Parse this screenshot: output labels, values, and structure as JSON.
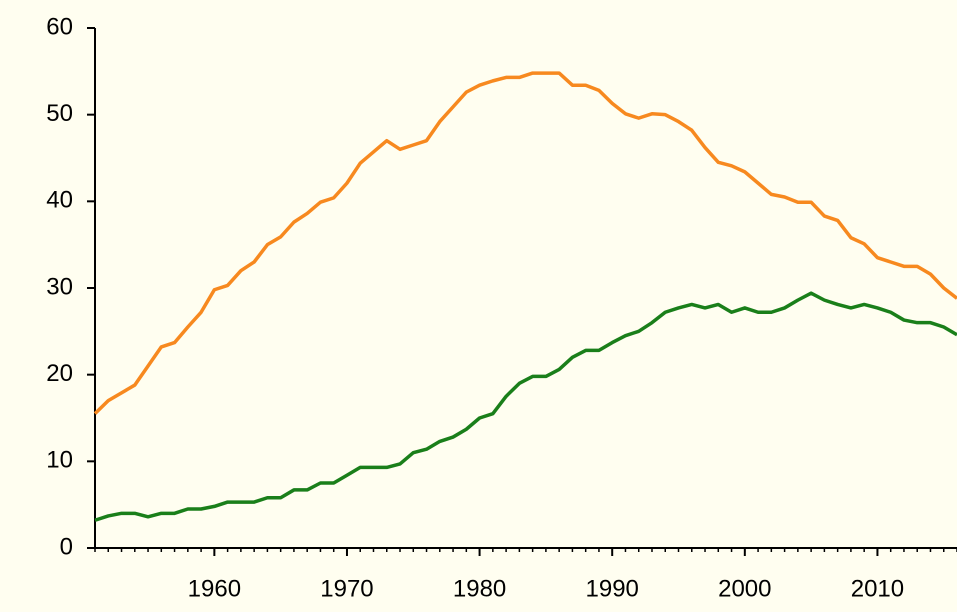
{
  "chart_data": {
    "type": "line",
    "x": [
      1951,
      1952,
      1953,
      1954,
      1955,
      1956,
      1957,
      1958,
      1959,
      1960,
      1961,
      1962,
      1963,
      1964,
      1965,
      1966,
      1967,
      1968,
      1969,
      1970,
      1971,
      1972,
      1973,
      1974,
      1975,
      1976,
      1977,
      1978,
      1979,
      1980,
      1981,
      1982,
      1983,
      1984,
      1985,
      1986,
      1987,
      1988,
      1989,
      1990,
      1991,
      1992,
      1993,
      1994,
      1995,
      1996,
      1997,
      1998,
      1999,
      2000,
      2001,
      2002,
      2003,
      2004,
      2005,
      2006,
      2007,
      2008,
      2009,
      2010,
      2011,
      2012,
      2013,
      2014,
      2015,
      2016
    ],
    "series": [
      {
        "color": "#f7891f",
        "values": [
          15.5,
          17,
          17.9,
          18.8,
          21,
          23.2,
          23.7,
          25.5,
          27.2,
          29.8,
          30.3,
          32,
          33,
          35,
          35.9,
          37.6,
          38.6,
          39.9,
          40.4,
          42.1,
          44.4,
          45.7,
          47,
          46,
          46.5,
          47,
          49.2,
          50.9,
          52.6,
          53.4,
          53.9,
          54.3,
          54.3,
          54.8,
          54.8,
          54.8,
          53.4,
          53.4,
          52.8,
          51.3,
          50.1,
          49.6,
          50.1,
          50,
          49.2,
          48.2,
          46.2,
          44.5,
          44.1,
          43.4,
          42.1,
          40.8,
          40.5,
          39.9,
          39.9,
          38.3,
          37.8,
          35.8,
          35.1,
          33.5,
          33,
          32.5,
          32.5,
          31.6,
          30,
          28.8
        ]
      },
      {
        "color": "#1a7f1a",
        "values": [
          3.2,
          3.7,
          4,
          4,
          3.6,
          4,
          4,
          4.5,
          4.5,
          4.8,
          5.3,
          5.3,
          5.3,
          5.8,
          5.8,
          6.7,
          6.7,
          7.5,
          7.5,
          8.4,
          9.3,
          9.3,
          9.3,
          9.7,
          11,
          11.4,
          12.3,
          12.8,
          13.7,
          15,
          15.5,
          17.5,
          19,
          19.8,
          19.8,
          20.6,
          22,
          22.8,
          22.8,
          23.7,
          24.5,
          25,
          26,
          27.2,
          27.7,
          28.1,
          27.7,
          28.1,
          27.2,
          27.7,
          27.2,
          27.2,
          27.7,
          28.6,
          29.4,
          28.6,
          28.1,
          27.7,
          28.1,
          27.7,
          27.2,
          26.3,
          26,
          26,
          25.5,
          24.6
        ]
      }
    ],
    "xlim": [
      1951,
      2016
    ],
    "xticks": [
      1960,
      1970,
      1980,
      1990,
      2000,
      2010
    ],
    "ylim": [
      0,
      60
    ],
    "yticks": [
      0,
      10,
      20,
      30,
      40,
      50,
      60
    ]
  }
}
